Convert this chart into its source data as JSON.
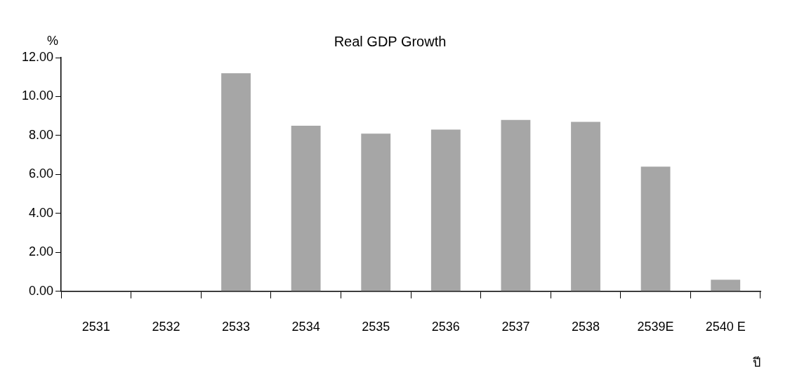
{
  "chart_data": {
    "type": "bar",
    "title": "Real GDP Growth",
    "ylabel": "%",
    "xlabel": "ปี",
    "categories": [
      "2531",
      "2532",
      "2533",
      "2534",
      "2535",
      "2536",
      "2537",
      "2538",
      "2539E",
      "2540 E"
    ],
    "values": [
      null,
      null,
      11.2,
      8.5,
      8.1,
      8.3,
      8.8,
      8.7,
      6.4,
      0.6
    ],
    "color": "#a6a6a6",
    "ylim": [
      0,
      12
    ],
    "yticks": [
      {
        "value": 0,
        "label": "0.00"
      },
      {
        "value": 2,
        "label": "2.00"
      },
      {
        "value": 4,
        "label": "4.00"
      },
      {
        "value": 6,
        "label": "6.00"
      },
      {
        "value": 8,
        "label": "8.00"
      },
      {
        "value": 10,
        "label": "10.00"
      },
      {
        "value": 12,
        "label": "12.00"
      }
    ]
  }
}
